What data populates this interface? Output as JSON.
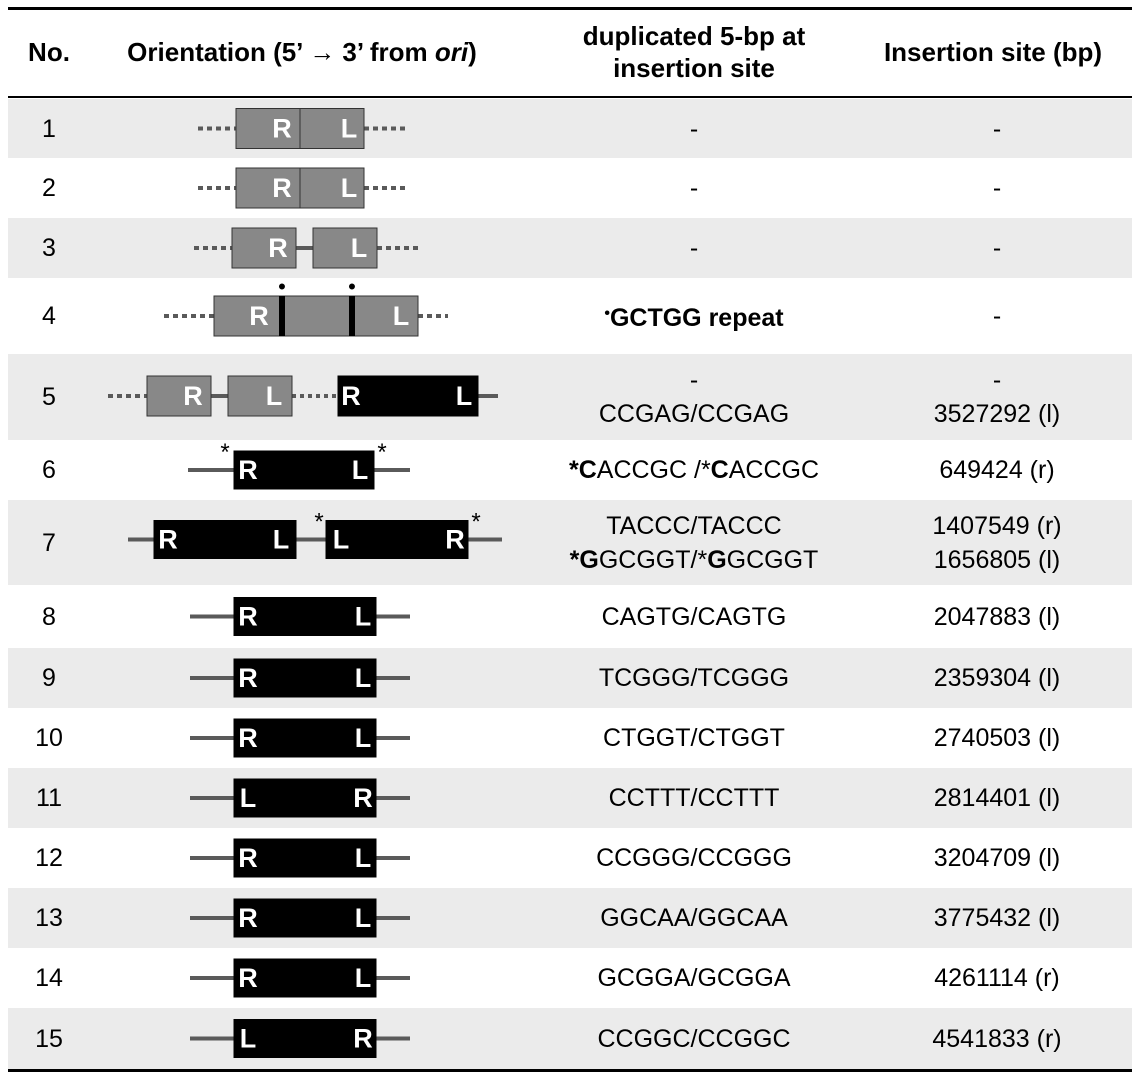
{
  "headers": {
    "no": "No.",
    "orientation": "Orientation (5’ → 3’ from ",
    "orientation_ori": "ori",
    "orientation_close": ")",
    "duplicated_line1": "duplicated 5-bp at",
    "duplicated_line2": "insertion site",
    "insertion_site": "Insertion site (bp)"
  },
  "colors": {
    "grey_box": "#888888",
    "black_box": "#000000",
    "line": "#5a5a5a",
    "shade": "#ebebeb"
  },
  "rows": [
    {
      "no": "1",
      "dup": [
        "-"
      ],
      "site": [
        "-"
      ]
    },
    {
      "no": "2",
      "dup": [
        "-"
      ],
      "site": [
        "-"
      ]
    },
    {
      "no": "3",
      "dup": [
        "-"
      ],
      "site": [
        "-"
      ]
    },
    {
      "no": "4",
      "dup_dot": "•",
      "dup_bold": "GCTGG repeat",
      "site": [
        "-"
      ]
    },
    {
      "no": "5",
      "dup": [
        "-",
        "CCGAG/CCGAG"
      ],
      "site": [
        "-",
        "3527292 (l)"
      ]
    },
    {
      "no": "6",
      "dup_parts": [
        "*",
        "C",
        "ACCGC /*",
        "C",
        "ACCGC"
      ],
      "site": [
        "649424 (r)"
      ]
    },
    {
      "no": "7",
      "dup": [
        "TACCC/TACCC"
      ],
      "dup_parts2": [
        "*",
        "G",
        "GCGGT/*",
        "G",
        "GCGGT"
      ],
      "site": [
        "1407549 (r)",
        "1656805 (l)"
      ]
    },
    {
      "no": "8",
      "dup": [
        "CAGTG/CAGTG"
      ],
      "site": [
        "2047883 (l)"
      ]
    },
    {
      "no": "9",
      "dup": [
        "TCGGG/TCGGG"
      ],
      "site": [
        "2359304 (l)"
      ]
    },
    {
      "no": "10",
      "dup": [
        "CTGGT/CTGGT"
      ],
      "site": [
        "2740503 (l)"
      ]
    },
    {
      "no": "11",
      "dup": [
        "CCTTT/CCTTT"
      ],
      "site": [
        "2814401 (l)"
      ]
    },
    {
      "no": "12",
      "dup": [
        "CCGGG/CCGGG"
      ],
      "site": [
        "3204709 (l)"
      ]
    },
    {
      "no": "13",
      "dup": [
        "GGCAA/GGCAA"
      ],
      "site": [
        "3775432 (l)"
      ]
    },
    {
      "no": "14",
      "dup": [
        "GCGGA/GCGGA"
      ],
      "site": [
        "4261114 (r)"
      ]
    },
    {
      "no": "15",
      "dup": [
        "CCGGC/CCGGC"
      ],
      "site": [
        "4541833 (r)"
      ]
    }
  ],
  "orientation_diagrams": [
    {
      "boxes": [
        {
          "color": "grey",
          "labels": [
            "R",
            "L"
          ]
        }
      ]
    },
    {
      "boxes": [
        {
          "color": "grey",
          "labels": [
            "R",
            "L"
          ]
        }
      ]
    },
    {
      "boxes": [
        {
          "color": "grey",
          "labels": [
            "R"
          ]
        },
        {
          "color": "grey",
          "labels": [
            "L"
          ]
        }
      ]
    },
    {
      "boxes": [
        {
          "color": "grey",
          "labels": [
            "R",
            "L"
          ]
        }
      ],
      "marks": [
        "•",
        "•"
      ]
    },
    {
      "boxes": [
        {
          "color": "grey",
          "labels": [
            "R"
          ]
        },
        {
          "color": "grey",
          "labels": [
            "L"
          ]
        },
        {
          "color": "black",
          "labels": [
            "R",
            "L"
          ]
        }
      ]
    },
    {
      "boxes": [
        {
          "color": "black",
          "labels": [
            "R",
            "L"
          ]
        }
      ],
      "marks": [
        "*",
        "*"
      ]
    },
    {
      "boxes": [
        {
          "color": "black",
          "labels": [
            "R",
            "L"
          ]
        },
        {
          "color": "black",
          "labels": [
            "L",
            "R"
          ]
        }
      ],
      "marks": [
        "*",
        "*"
      ]
    },
    {
      "boxes": [
        {
          "color": "black",
          "labels": [
            "R",
            "L"
          ]
        }
      ]
    },
    {
      "boxes": [
        {
          "color": "black",
          "labels": [
            "R",
            "L"
          ]
        }
      ]
    },
    {
      "boxes": [
        {
          "color": "black",
          "labels": [
            "R",
            "L"
          ]
        }
      ]
    },
    {
      "boxes": [
        {
          "color": "black",
          "labels": [
            "L",
            "R"
          ]
        }
      ]
    },
    {
      "boxes": [
        {
          "color": "black",
          "labels": [
            "R",
            "L"
          ]
        }
      ]
    },
    {
      "boxes": [
        {
          "color": "black",
          "labels": [
            "R",
            "L"
          ]
        }
      ]
    },
    {
      "boxes": [
        {
          "color": "black",
          "labels": [
            "R",
            "L"
          ]
        }
      ]
    },
    {
      "boxes": [
        {
          "color": "black",
          "labels": [
            "L",
            "R"
          ]
        }
      ]
    }
  ]
}
